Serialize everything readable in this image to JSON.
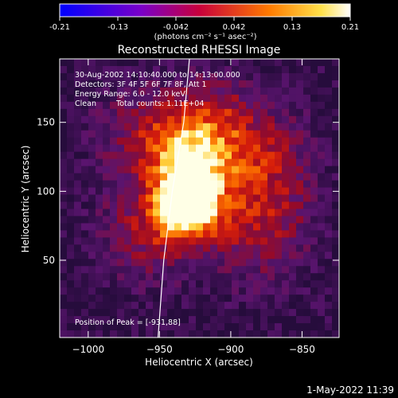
{
  "colorbar": {
    "ticks": [
      "-0.21",
      "-0.13",
      "-0.042",
      "0.042",
      "0.13",
      "0.21"
    ],
    "units": "(photons cm⁻² s⁻¹ asec⁻²)"
  },
  "chart_data": {
    "type": "heatmap",
    "title": "Reconstructed RHESSI Image",
    "xlabel": "Heliocentric X (arcsec)",
    "ylabel": "Heliocentric Y (arcsec)",
    "xlim": [
      -1020,
      -824
    ],
    "ylim": [
      -6,
      196
    ],
    "xticks": [
      -1000,
      -950,
      -900,
      -850
    ],
    "yticks": [
      50,
      100,
      150
    ],
    "colormap": "red temperature",
    "color_range": [
      -0.21,
      0.21
    ],
    "info_lines": [
      "30-Aug-2002 14:10:40.000 to 14:13:00.000",
      "Detectors: 3F 4F 5F 6F 7F 8F, Att 1",
      "Energy Range: 6.0 - 12.0 keV",
      "Clean",
      "Total counts: 1.11E+04"
    ],
    "peak_label": "Position of Peak = [-931,88]",
    "peak": {
      "x": -931,
      "y": 88
    },
    "limb_arc": [
      [
        -951,
        -6
      ],
      [
        -947,
        50
      ],
      [
        -941,
        100
      ],
      [
        -933,
        150
      ],
      [
        -929,
        196
      ]
    ]
  },
  "footer": {
    "timestamp": "1-May-2022 11:39"
  }
}
